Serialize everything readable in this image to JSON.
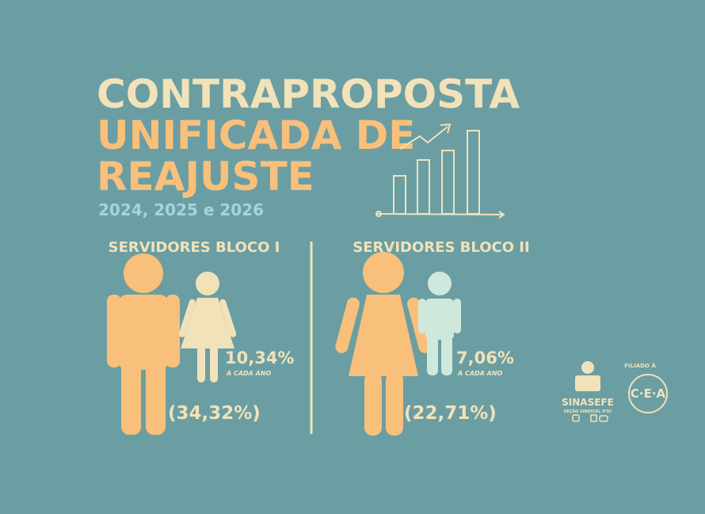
{
  "header": {
    "title_lines": [
      "CONTRAPROPOSTA",
      "UNIFICADA DE",
      "REAJUSTE"
    ],
    "years": "2024, 2025 e 2026"
  },
  "blocks": [
    {
      "label": "SERVIDORES BLOCO I",
      "annual": "10,34%",
      "annual_note": "A CADA ANO",
      "total": "(34,32%)"
    },
    {
      "label": "SERVIDORES BLOCO II",
      "annual": "7,06%",
      "annual_note": "A CADA ANO",
      "total": "(22,71%)"
    }
  ],
  "footer": {
    "union": "SINASEFE",
    "union_sub": "SEÇÃO SINDICAL IFSC",
    "affiliation": "FILIADO À",
    "affiliate": "C·E·A"
  }
}
